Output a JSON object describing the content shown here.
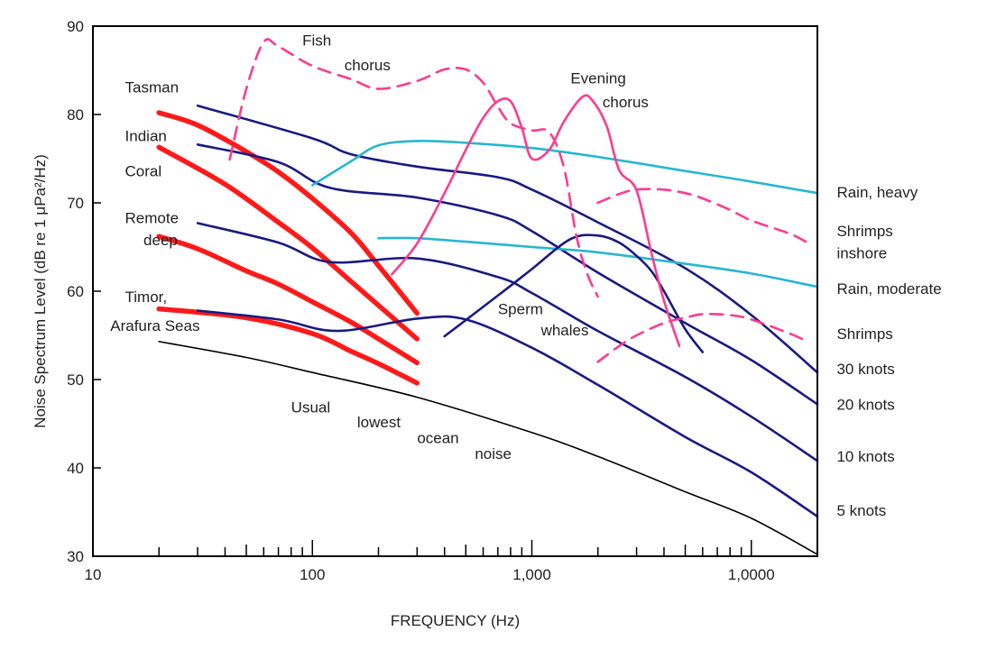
{
  "chart_data": {
    "type": "line",
    "title": "",
    "xlabel": "FREQUENCY (Hz)",
    "ylabel": "Noise Spectrum Level (dB re 1 μPa²/Hz)",
    "xscale": "log",
    "xlim": [
      10,
      20000
    ],
    "ylim": [
      30,
      90
    ],
    "yticks": [
      30,
      40,
      50,
      60,
      70,
      80,
      90
    ],
    "ytick_labels": [
      "30",
      "40",
      "50",
      "60",
      "70",
      "80",
      "90"
    ],
    "xticks": [
      10,
      100,
      1000,
      10000
    ],
    "xtick_labels": [
      "10",
      "100",
      "1,000",
      "1,0000"
    ],
    "colors": {
      "sea_noise": "#ff1a1a",
      "wind": "#1a1a80",
      "rain": "#27b6d0",
      "biological": "#ff3b8d",
      "sperm_whales": "#1a1a80",
      "lowest": "#000000"
    },
    "series": [
      {
        "name": "Tasman",
        "color": "#ff1a1a",
        "style": "solid",
        "x": [
          20,
          30,
          50,
          70,
          100,
          150,
          200,
          300
        ],
        "y": [
          80.2,
          78.8,
          75.8,
          73.5,
          70.5,
          66.6,
          62.9,
          57.5
        ]
      },
      {
        "name": "Indian",
        "color": "#ff1a1a",
        "style": "solid",
        "x": [
          20,
          40,
          70,
          100,
          150,
          200,
          300
        ],
        "y": [
          76.3,
          72.1,
          67.8,
          64.9,
          61.1,
          58.4,
          54.6
        ]
      },
      {
        "name": "Remote deep",
        "color": "#ff1a1a",
        "style": "solid",
        "x": [
          20,
          30,
          50,
          70,
          100,
          150,
          200,
          300
        ],
        "y": [
          66.2,
          64.8,
          62.3,
          60.8,
          58.8,
          56.5,
          54.6,
          51.9
        ]
      },
      {
        "name": "Timor, Arafura Seas",
        "color": "#ff1a1a",
        "style": "solid",
        "x": [
          20,
          50,
          100,
          150,
          200,
          300
        ],
        "y": [
          58.0,
          57.0,
          55.2,
          53.2,
          51.8,
          49.6
        ]
      },
      {
        "name": "30 knots",
        "color": "#1a1a80",
        "style": "solid",
        "x": [
          30,
          100,
          150,
          300,
          700,
          1000,
          2000,
          5000,
          10000,
          20000
        ],
        "y": [
          81.0,
          77.3,
          75.5,
          74.1,
          72.9,
          71.5,
          67.8,
          62.6,
          57.3,
          50.8
        ]
      },
      {
        "name": "20 knots",
        "color": "#1a1a80",
        "style": "solid",
        "x": [
          30,
          70,
          120,
          300,
          700,
          1000,
          2000,
          5000,
          10000,
          20000
        ],
        "y": [
          76.6,
          74.6,
          71.7,
          70.6,
          68.6,
          66.8,
          62.1,
          56.4,
          52.2,
          47.2
        ]
      },
      {
        "name": "10 knots",
        "color": "#1a1a80",
        "style": "solid",
        "x": [
          30,
          70,
          120,
          300,
          700,
          1000,
          2000,
          5000,
          10000,
          20000
        ],
        "y": [
          67.7,
          65.5,
          63.3,
          63.7,
          61.6,
          59.8,
          55.5,
          50.3,
          45.8,
          40.8
        ]
      },
      {
        "name": "5 knots",
        "color": "#1a1a80",
        "style": "solid",
        "x": [
          30,
          70,
          130,
          300,
          500,
          1000,
          2000,
          5000,
          10000,
          20000
        ],
        "y": [
          57.8,
          56.8,
          55.5,
          56.9,
          56.8,
          53.6,
          49.4,
          43.5,
          39.5,
          34.5
        ]
      },
      {
        "name": "Usual lowest ocean noise",
        "color": "#000000",
        "style": "solid",
        "x": [
          20,
          50,
          100,
          300,
          1000,
          2000,
          5000,
          10000,
          20000
        ],
        "y": [
          54.3,
          52.5,
          50.8,
          48.0,
          44.0,
          41.3,
          37.3,
          34.3,
          30.2
        ]
      },
      {
        "name": "Rain, heavy",
        "color": "#27b6d0",
        "style": "solid",
        "x": [
          100,
          150,
          200,
          300,
          500,
          1000,
          2000,
          5000,
          10000,
          20000
        ],
        "y": [
          72.0,
          74.7,
          76.5,
          77.0,
          76.8,
          76.2,
          75.2,
          73.6,
          72.4,
          71.1
        ]
      },
      {
        "name": "Rain, moderate",
        "color": "#27b6d0",
        "style": "solid",
        "x": [
          200,
          300,
          500,
          1000,
          2000,
          5000,
          10000,
          20000
        ],
        "y": [
          66.0,
          66.0,
          65.6,
          65.0,
          64.4,
          63.1,
          62.0,
          60.5
        ]
      },
      {
        "name": "Sperm whales",
        "color": "#1a1a80",
        "style": "solid",
        "x": [
          400,
          700,
          1000,
          1500,
          2000,
          2500,
          3000,
          3500,
          4000,
          5000,
          6000
        ],
        "y": [
          54.9,
          59.5,
          62.5,
          65.9,
          66.3,
          65.5,
          64.0,
          62.3,
          60.0,
          55.7,
          53.1
        ]
      },
      {
        "name": "Fish chorus",
        "color": "#ff3b8d",
        "style": "dashed",
        "x": [
          42,
          50,
          60,
          70,
          100,
          150,
          200,
          300,
          400,
          500,
          600,
          700,
          800,
          1000,
          1200,
          1400,
          1600,
          1800,
          2000
        ],
        "y": [
          74.9,
          82.9,
          88.2,
          87.7,
          85.5,
          84.0,
          82.9,
          83.8,
          85.1,
          85.1,
          83.6,
          80.9,
          79.0,
          78.2,
          78.0,
          74.0,
          66.1,
          61.8,
          59.4
        ]
      },
      {
        "name": "Evening chorus",
        "color": "#ff3b8d",
        "style": "solid",
        "x": [
          230,
          300,
          400,
          500,
          600,
          700,
          800,
          900,
          1000,
          1200,
          1400,
          1700,
          1900,
          2200,
          2500,
          3000,
          3500,
          4000,
          4700
        ],
        "y": [
          61.9,
          65.4,
          71.1,
          76.0,
          79.6,
          81.5,
          81.5,
          78.5,
          75.0,
          76.0,
          79.2,
          82.0,
          81.5,
          78.6,
          73.7,
          71.4,
          64.4,
          58.9,
          53.8
        ]
      },
      {
        "name": "Shrimps inshore",
        "color": "#ff3b8d",
        "style": "dashed",
        "x": [
          2000,
          2500,
          3000,
          4000,
          5000,
          6000,
          8000,
          10000,
          15000,
          18000
        ],
        "y": [
          70.0,
          71.0,
          71.5,
          71.5,
          71.1,
          70.5,
          69.2,
          68.0,
          66.5,
          65.5
        ]
      },
      {
        "name": "Shrimps",
        "color": "#ff3b8d",
        "style": "dashed",
        "x": [
          2000,
          2500,
          3000,
          4000,
          5000,
          6000,
          8000,
          10000,
          15000,
          18000
        ],
        "y": [
          52.0,
          53.8,
          55.0,
          56.4,
          57.0,
          57.4,
          57.3,
          56.8,
          55.2,
          54.3
        ]
      }
    ],
    "annotations": [
      {
        "text": "Tasman",
        "x": 14,
        "y": 82.5
      },
      {
        "text": "Indian",
        "x": 14,
        "y": 77.0
      },
      {
        "text": "Coral",
        "x": 14,
        "y": 73.0
      },
      {
        "text": "Remote",
        "x": 14,
        "y": 67.7
      },
      {
        "text": "deep",
        "x": 17,
        "y": 65.2
      },
      {
        "text": "Timor,",
        "x": 14,
        "y": 58.8
      },
      {
        "text": "Arafura Seas",
        "x": 12,
        "y": 55.5
      },
      {
        "text": "Fish",
        "x": 90,
        "y": 87.8
      },
      {
        "text": "chorus",
        "x": 140,
        "y": 85.0
      },
      {
        "text": "Evening",
        "x": 1500,
        "y": 83.5
      },
      {
        "text": "chorus",
        "x": 2100,
        "y": 80.8
      },
      {
        "text": "Sperm",
        "x": 700,
        "y": 57.4
      },
      {
        "text": "whales",
        "x": 1100,
        "y": 55.0
      },
      {
        "text": "Usual",
        "x": 80,
        "y": 46.3
      },
      {
        "text": "lowest",
        "x": 160,
        "y": 44.6
      },
      {
        "text": "ocean",
        "x": 300,
        "y": 42.8
      },
      {
        "text": "noise",
        "x": 550,
        "y": 41.0
      },
      {
        "text": "Rain, heavy",
        "x": 24500,
        "y": 70.6
      },
      {
        "text": "Shrimps",
        "x": 24500,
        "y": 66.2
      },
      {
        "text": "inshore",
        "x": 24500,
        "y": 63.7
      },
      {
        "text": "Rain, moderate",
        "x": 24500,
        "y": 59.7
      },
      {
        "text": "Shrimps",
        "x": 24500,
        "y": 54.6
      },
      {
        "text": "30 knots",
        "x": 24500,
        "y": 50.6
      },
      {
        "text": "20 knots",
        "x": 24500,
        "y": 46.6
      },
      {
        "text": "10 knots",
        "x": 24500,
        "y": 40.7
      },
      {
        "text": "5 knots",
        "x": 24500,
        "y": 34.6
      }
    ],
    "grid": false,
    "legend": "none"
  }
}
